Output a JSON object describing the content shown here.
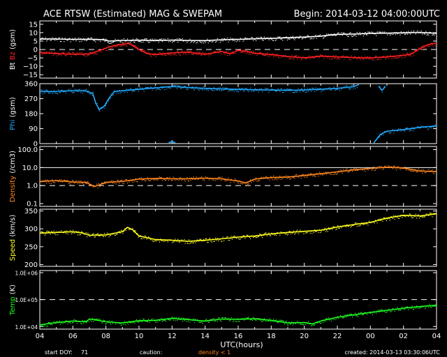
{
  "header": {
    "title": "ACE RTSW (Estimated) MAG & SWEPAM",
    "begin": "Begin: 2014-03-12 04:00:00UTC"
  },
  "footer": {
    "start_doy_label": "start DOY:",
    "start_doy_value": "71",
    "caution_label": "caution:",
    "caution_value": "density < 1",
    "created": "created: 2014-03-13 03:30:06UTC"
  },
  "chart_data": {
    "type": "line",
    "x_axis": {
      "label": "UTC(hours)",
      "range_hours": [
        0,
        24
      ],
      "tick_labels": [
        "04",
        "06",
        "08",
        "10",
        "12",
        "14",
        "16",
        "18",
        "20",
        "22",
        "00",
        "02",
        "04"
      ]
    },
    "panels": [
      {
        "id": "mag-bt-bz",
        "ylabel_parts": [
          {
            "text": "Bt",
            "color": "#ffffff"
          },
          {
            "text": "Bz",
            "color": "#ff2020"
          },
          {
            "text": "(gsm)",
            "color": "#ffffff"
          }
        ],
        "scale": "linear",
        "ylim": [
          -17,
          17
        ],
        "tick_values": [
          15,
          10,
          5,
          0,
          -5,
          -10,
          -15
        ],
        "tick_labels": [
          "15",
          "10",
          "5",
          "0",
          "−5",
          "−10",
          "−15"
        ],
        "dashed_lines": [
          0
        ],
        "series": [
          {
            "name": "Bt",
            "color": "#ffffff",
            "points": [
              [
                0,
                6.3
              ],
              [
                1,
                6.2
              ],
              [
                2,
                6.0
              ],
              [
                3,
                6.1
              ],
              [
                3.8,
                5.9
              ],
              [
                4.2,
                5.0
              ],
              [
                5,
                5.4
              ],
              [
                6,
                5.5
              ],
              [
                7,
                5.3
              ],
              [
                8,
                5.6
              ],
              [
                9,
                5.4
              ],
              [
                10,
                5.3
              ],
              [
                11,
                5.8
              ],
              [
                12,
                6.0
              ],
              [
                13,
                6.4
              ],
              [
                14,
                6.6
              ],
              [
                15,
                7.0
              ],
              [
                16,
                7.4
              ],
              [
                17,
                7.9
              ],
              [
                17.5,
                8.6
              ],
              [
                18,
                9.0
              ],
              [
                19,
                9.2
              ],
              [
                20,
                9.6
              ],
              [
                21,
                9.7
              ],
              [
                22,
                9.9
              ],
              [
                23,
                10.2
              ],
              [
                24,
                9.6
              ]
            ]
          },
          {
            "name": "Bz",
            "color": "#ff2020",
            "points": [
              [
                0,
                -1.8
              ],
              [
                1,
                -2.4
              ],
              [
                2,
                -2.8
              ],
              [
                3,
                -2.6
              ],
              [
                3.5,
                -1.0
              ],
              [
                4.2,
                1.5
              ],
              [
                4.8,
                3.0
              ],
              [
                5.4,
                3.6
              ],
              [
                6,
                0.0
              ],
              [
                6.5,
                -2.4
              ],
              [
                7,
                -3.0
              ],
              [
                8,
                -2.0
              ],
              [
                9,
                -1.6
              ],
              [
                10,
                -2.8
              ],
              [
                11,
                -1.2
              ],
              [
                11.5,
                -2.6
              ],
              [
                12,
                -0.5
              ],
              [
                12.5,
                -1.0
              ],
              [
                13,
                -2.2
              ],
              [
                14,
                -3.0
              ],
              [
                15,
                -4.2
              ],
              [
                16,
                -5.0
              ],
              [
                17,
                -4.0
              ],
              [
                18,
                -4.4
              ],
              [
                19,
                -4.8
              ],
              [
                20,
                -5.0
              ],
              [
                21,
                -4.4
              ],
              [
                22,
                -3.5
              ],
              [
                22.5,
                -2.6
              ],
              [
                23,
                0.6
              ],
              [
                23.5,
                3.0
              ],
              [
                24,
                3.8
              ]
            ]
          }
        ]
      },
      {
        "id": "mag-phi",
        "ylabel_parts": [
          {
            "text": "Phi",
            "color": "#22aaff"
          },
          {
            "text": "(gsm)",
            "color": "#ffffff"
          }
        ],
        "scale": "linear",
        "ylim": [
          0,
          360
        ],
        "tick_values": [
          360,
          270,
          180,
          90,
          0
        ],
        "tick_labels": [
          "360",
          "270",
          "180",
          "90",
          "0"
        ],
        "dashed_lines": [],
        "series": [
          {
            "name": "Phi",
            "color": "#22aaff",
            "segments": [
              [
                [
                  0,
                  312
                ],
                [
                  1,
                  314
                ],
                [
                  2,
                  318
                ],
                [
                  2.8,
                  316
                ],
                [
                  3.2,
                  302
                ],
                [
                  3.4,
                  240
                ],
                [
                  3.6,
                  205
                ],
                [
                  3.9,
                  225
                ],
                [
                  4.2,
                  275
                ],
                [
                  4.5,
                  312
                ],
                [
                  5,
                  318
                ],
                [
                  6,
                  326
                ],
                [
                  7,
                  335
                ],
                [
                  8,
                  343
                ],
                [
                  9,
                  337
                ],
                [
                  10,
                  332
                ],
                [
                  11,
                  328
                ],
                [
                  12,
                  326
                ],
                [
                  13,
                  323
                ],
                [
                  14,
                  322
                ],
                [
                  15,
                  320
                ],
                [
                  16,
                  322
                ],
                [
                  17,
                  326
                ],
                [
                  18,
                  332
                ],
                [
                  19,
                  342
                ],
                [
                  19.3,
                  355
                ]
              ],
              [
                [
                  20.5,
                  345
                ],
                [
                  20.7,
                  320
                ],
                [
                  20.9,
                  342
                ]
              ],
              [
                [
                  7.8,
                  6
                ],
                [
                  8.0,
                  12
                ],
                [
                  8.2,
                  4
                ]
              ],
              [
                [
                  20.2,
                  4
                ],
                [
                  20.6,
                  55
                ],
                [
                  21,
                  75
                ],
                [
                  22,
                  84
                ],
                [
                  23,
                  98
                ],
                [
                  24,
                  106
                ]
              ]
            ]
          }
        ]
      },
      {
        "id": "swepam-density",
        "ylabel_parts": [
          {
            "text": "Density",
            "color": "#ff8820"
          },
          {
            "text": "(/cm3)",
            "color": "#ffffff"
          }
        ],
        "scale": "log",
        "ylim": [
          0.07,
          150
        ],
        "tick_values": [
          100,
          10,
          1,
          0.1
        ],
        "tick_labels": [
          "100.0",
          "10.0",
          "1.0",
          "0.1"
        ],
        "dashed_lines": [
          1
        ],
        "solid_lines": [
          10
        ],
        "series": [
          {
            "name": "Density",
            "color": "#ff8820",
            "points": [
              [
                0,
                1.7
              ],
              [
                1,
                1.9
              ],
              [
                2,
                1.6
              ],
              [
                2.8,
                1.5
              ],
              [
                3.3,
                0.9
              ],
              [
                3.6,
                1.1
              ],
              [
                4,
                1.5
              ],
              [
                5,
                1.7
              ],
              [
                6,
                2.3
              ],
              [
                7,
                2.5
              ],
              [
                8,
                2.4
              ],
              [
                9,
                2.4
              ],
              [
                10,
                2.6
              ],
              [
                11,
                2.4
              ],
              [
                12,
                1.8
              ],
              [
                12.5,
                1.4
              ],
              [
                13,
                2.3
              ],
              [
                14,
                2.8
              ],
              [
                15,
                3.0
              ],
              [
                16,
                3.6
              ],
              [
                17,
                4.6
              ],
              [
                18,
                5.8
              ],
              [
                19,
                7.5
              ],
              [
                20,
                9.0
              ],
              [
                21,
                10.5
              ],
              [
                22,
                9.5
              ],
              [
                23,
                6.5
              ],
              [
                24,
                6.0
              ]
            ]
          }
        ]
      },
      {
        "id": "swepam-speed",
        "ylabel_parts": [
          {
            "text": "Speed",
            "color": "#ffff20"
          },
          {
            "text": "(km/s)",
            "color": "#ffffff"
          }
        ],
        "scale": "linear",
        "ylim": [
          195,
          355
        ],
        "tick_values": [
          350,
          300,
          250,
          200
        ],
        "tick_labels": [
          "350",
          "300",
          "250",
          "200"
        ],
        "dashed_lines": [],
        "series": [
          {
            "name": "Speed",
            "color": "#ffff20",
            "points": [
              [
                0,
                288
              ],
              [
                1,
                290
              ],
              [
                2,
                292
              ],
              [
                2.6,
                288
              ],
              [
                3,
                282
              ],
              [
                4,
                283
              ],
              [
                5,
                292
              ],
              [
                5.3,
                304
              ],
              [
                5.6,
                298
              ],
              [
                6,
                280
              ],
              [
                7,
                270
              ],
              [
                8,
                268
              ],
              [
                9,
                265
              ],
              [
                10,
                268
              ],
              [
                11,
                272
              ],
              [
                12,
                277
              ],
              [
                13,
                280
              ],
              [
                14,
                286
              ],
              [
                15,
                290
              ],
              [
                16,
                293
              ],
              [
                17,
                296
              ],
              [
                18,
                305
              ],
              [
                19,
                312
              ],
              [
                20,
                318
              ],
              [
                21,
                330
              ],
              [
                22,
                338
              ],
              [
                23,
                336
              ],
              [
                24,
                342
              ]
            ]
          }
        ]
      },
      {
        "id": "swepam-temp",
        "ylabel_parts": [
          {
            "text": "Temp",
            "color": "#20ff20"
          },
          {
            "text": "(K)",
            "color": "#ffffff"
          }
        ],
        "scale": "log",
        "ylim": [
          8000,
          1200000
        ],
        "tick_values": [
          1000000,
          100000,
          10000
        ],
        "tick_labels": [
          "1.0E+06",
          "1.0E+05",
          "1.0E+04"
        ],
        "dashed_lines": [
          100000
        ],
        "series": [
          {
            "name": "Temp",
            "color": "#20ff20",
            "points": [
              [
                0,
                11500
              ],
              [
                1,
                14000
              ],
              [
                2,
                16000
              ],
              [
                2.8,
                15000
              ],
              [
                3,
                19000
              ],
              [
                4,
                15000
              ],
              [
                5,
                13500
              ],
              [
                6,
                16500
              ],
              [
                7,
                17000
              ],
              [
                8,
                20000
              ],
              [
                9,
                18000
              ],
              [
                10,
                16000
              ],
              [
                11,
                19000
              ],
              [
                12,
                18500
              ],
              [
                13,
                19500
              ],
              [
                14,
                17000
              ],
              [
                15,
                13500
              ],
              [
                16,
                14000
              ],
              [
                16.5,
                12500
              ],
              [
                17,
                16000
              ],
              [
                18,
                22000
              ],
              [
                19,
                27000
              ],
              [
                20,
                33000
              ],
              [
                21,
                40000
              ],
              [
                22,
                48000
              ],
              [
                23,
                55000
              ],
              [
                24,
                62000
              ]
            ]
          }
        ]
      }
    ]
  }
}
